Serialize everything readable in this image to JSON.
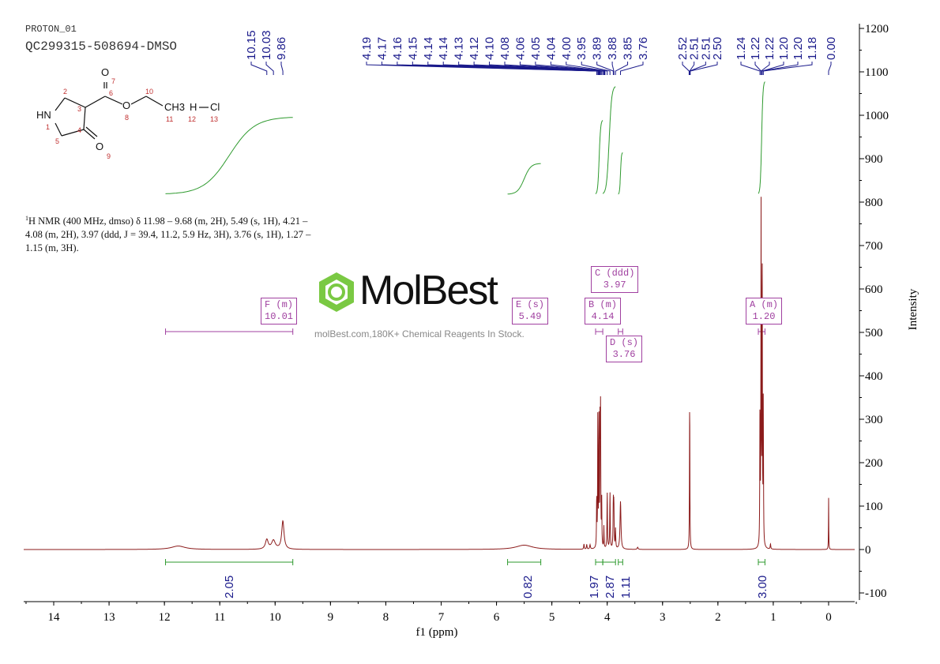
{
  "header": {
    "experiment": "PROTON_01",
    "sample": "QC299315-508694-DMSO"
  },
  "structure": {
    "atoms": [
      "HN",
      "O",
      "O",
      "O",
      "CH3",
      "H",
      "Cl"
    ],
    "numbers": [
      "1",
      "2",
      "3",
      "4",
      "5",
      "6",
      "7",
      "8",
      "9",
      "10",
      "11",
      "12",
      "13"
    ]
  },
  "description": "1H NMR (400 MHz, dmso) δ 11.98 – 9.68 (m, 2H), 5.49 (s, 1H), 4.21 – 4.08 (m, 2H), 3.97 (ddd, J = 39.4, 11.2, 5.9 Hz, 3H), 3.76 (s, 1H), 1.27 – 1.15 (m, 3H).",
  "watermark": {
    "brand": "MolBest",
    "tagline": "molBest.com,180K+ Chemical Reagents In Stock."
  },
  "colors": {
    "spectrum": "#8b1a1a",
    "peak_labels": "#1a1a8b",
    "integral": "#2e9a2e",
    "multiplet": "#a040a0"
  },
  "chart_data": {
    "type": "line",
    "xlabel": "f1 (ppm)",
    "ylabel": "Intensity",
    "xlim": [
      14.5,
      -0.5
    ],
    "ylim": [
      -100,
      1200
    ],
    "x_reversed": true,
    "xticks": [
      "14",
      "13",
      "12",
      "11",
      "10",
      "9",
      "8",
      "7",
      "6",
      "5",
      "4",
      "3",
      "2",
      "1",
      "0"
    ],
    "yticks": [
      "1200",
      "1100",
      "1000",
      "900",
      "800",
      "700",
      "600",
      "500",
      "400",
      "300",
      "200",
      "100",
      "0",
      "-100"
    ],
    "peak_label_groups": [
      [
        "10.15",
        "10.03",
        "9.86"
      ],
      [
        "4.19",
        "4.17",
        "4.16",
        "4.15",
        "4.14",
        "4.14",
        "4.13",
        "4.12",
        "4.10",
        "4.08",
        "4.06",
        "4.05",
        "4.04",
        "4.00",
        "3.95",
        "3.89",
        "3.88",
        "3.85",
        "3.76"
      ],
      [
        "2.52",
        "2.51",
        "2.51",
        "2.50"
      ],
      [
        "1.24",
        "1.22",
        "1.22",
        "1.20",
        "1.20",
        "1.18",
        "0.00"
      ]
    ],
    "peaks": [
      {
        "ppm": 11.75,
        "intensity": 8,
        "width": 0.15
      },
      {
        "ppm": 10.15,
        "intensity": 22,
        "width": 0.03
      },
      {
        "ppm": 10.03,
        "intensity": 20,
        "width": 0.04
      },
      {
        "ppm": 9.86,
        "intensity": 65,
        "width": 0.025
      },
      {
        "ppm": 5.5,
        "intensity": 10,
        "width": 0.18
      },
      {
        "ppm": 4.42,
        "intensity": 12,
        "width": 0.006
      },
      {
        "ppm": 4.37,
        "intensity": 11,
        "width": 0.006
      },
      {
        "ppm": 4.31,
        "intensity": 10,
        "width": 0.008
      },
      {
        "ppm": 4.19,
        "intensity": 120,
        "width": 0.004
      },
      {
        "ppm": 4.17,
        "intensity": 300,
        "width": 0.004
      },
      {
        "ppm": 4.15,
        "intensity": 300,
        "width": 0.004
      },
      {
        "ppm": 4.13,
        "intensity": 305,
        "width": 0.004
      },
      {
        "ppm": 4.12,
        "intensity": 300,
        "width": 0.004
      },
      {
        "ppm": 4.1,
        "intensity": 110,
        "width": 0.004
      },
      {
        "ppm": 4.06,
        "intensity": 50,
        "width": 0.004
      },
      {
        "ppm": 4.0,
        "intensity": 130,
        "width": 0.005
      },
      {
        "ppm": 3.95,
        "intensity": 130,
        "width": 0.005
      },
      {
        "ppm": 3.89,
        "intensity": 105,
        "width": 0.005
      },
      {
        "ppm": 3.88,
        "intensity": 100,
        "width": 0.005
      },
      {
        "ppm": 3.85,
        "intensity": 45,
        "width": 0.005
      },
      {
        "ppm": 3.76,
        "intensity": 110,
        "width": 0.01
      },
      {
        "ppm": 3.45,
        "intensity": 5,
        "width": 0.01
      },
      {
        "ppm": 2.51,
        "intensity": 360,
        "width": 0.004
      },
      {
        "ppm": 1.24,
        "intensity": 320,
        "width": 0.004
      },
      {
        "ppm": 1.22,
        "intensity": 770,
        "width": 0.004
      },
      {
        "ppm": 1.2,
        "intensity": 700,
        "width": 0.004
      },
      {
        "ppm": 1.18,
        "intensity": 330,
        "width": 0.004
      },
      {
        "ppm": 1.05,
        "intensity": 12,
        "width": 0.006
      },
      {
        "ppm": 0.0,
        "intensity": 120,
        "width": 0.003
      }
    ],
    "integrals": [
      {
        "from": 11.98,
        "to": 9.68,
        "value": "2.05"
      },
      {
        "from": 5.8,
        "to": 5.2,
        "value": "0.82"
      },
      {
        "from": 4.21,
        "to": 4.08,
        "value": "1.97"
      },
      {
        "from": 4.08,
        "to": 3.85,
        "value": "2.87"
      },
      {
        "from": 3.8,
        "to": 3.72,
        "value": "1.11"
      },
      {
        "from": 1.27,
        "to": 1.15,
        "value": "3.00"
      }
    ],
    "multiplets": [
      {
        "label": "F (m)",
        "shift": "10.01",
        "range": [
          11.98,
          9.68
        ]
      },
      {
        "label": "E (s)",
        "shift": "5.49"
      },
      {
        "label": "C (ddd)",
        "shift": "3.97"
      },
      {
        "label": "B (m)",
        "shift": "4.14",
        "range": [
          4.21,
          4.08
        ]
      },
      {
        "label": "D (s)",
        "shift": "3.76",
        "range": [
          3.8,
          3.72
        ]
      },
      {
        "label": "A (m)",
        "shift": "1.20",
        "range": [
          1.27,
          1.15
        ]
      }
    ]
  }
}
